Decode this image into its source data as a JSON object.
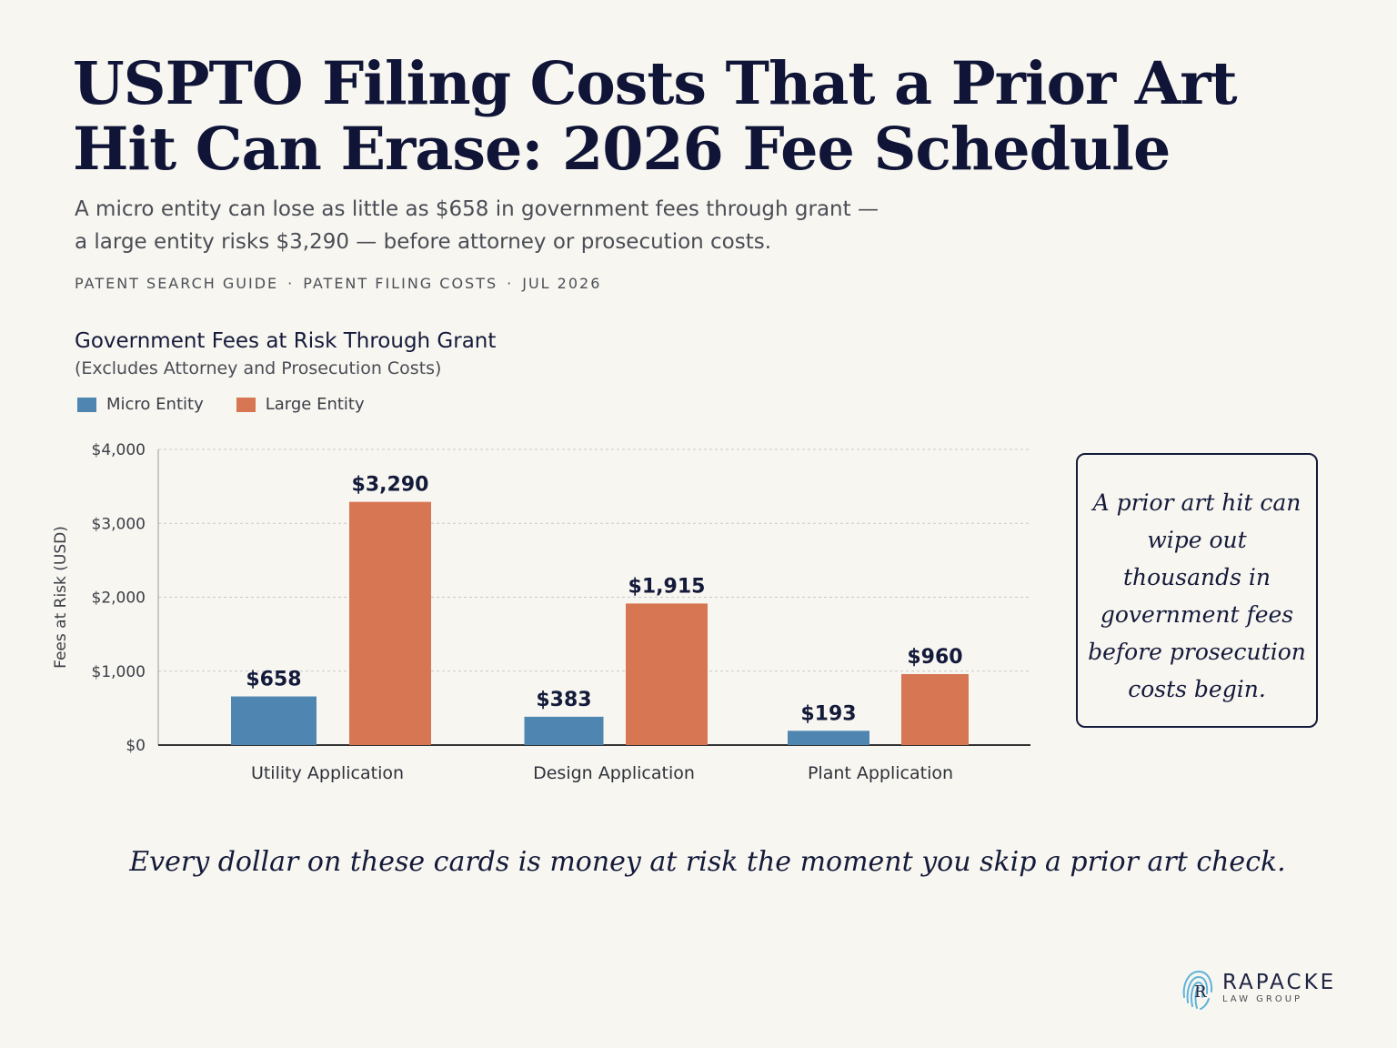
{
  "header": {
    "title": "USPTO Filing Costs That a Prior Art Hit Can Erase: 2026 Fee Schedule",
    "subtitle_line1": "A micro entity can lose as little as $658 in government fees through grant —",
    "subtitle_line2": "a large entity risks $3,290 — before attorney or prosecution costs.",
    "meta": [
      "PATENT SEARCH GUIDE",
      "PATENT FILING COSTS",
      "JUL 2026"
    ],
    "meta_separator": "·"
  },
  "chart_data": {
    "type": "bar",
    "title": "Government Fees at Risk Through Grant",
    "subtitle": "(Excludes Attorney and Prosecution Costs)",
    "ylabel": "Fees at Risk (USD)",
    "xlabel": "",
    "categories": [
      "Utility Application",
      "Design Application",
      "Plant Application"
    ],
    "series": [
      {
        "name": "Micro Entity",
        "values": [
          658,
          383,
          193
        ],
        "labels": [
          "$658",
          "$383",
          "$193"
        ],
        "color": "#4e86b1"
      },
      {
        "name": "Large Entity",
        "values": [
          3290,
          1915,
          960
        ],
        "labels": [
          "$3,290",
          "$1,915",
          "$960"
        ],
        "color": "#d77652"
      }
    ],
    "ylim": [
      0,
      4000
    ],
    "yticks": [
      0,
      1000,
      2000,
      3000,
      4000
    ],
    "ytick_labels": [
      "$0",
      "$1,000",
      "$2,000",
      "$3,000",
      "$4,000"
    ],
    "grid": true,
    "legend_position": "top-left"
  },
  "callout": {
    "text": "A prior art hit can wipe out thousands in government fees before prosecution costs begin."
  },
  "footer": {
    "quote": "Every dollar on these cards is money at risk the moment you skip a prior art check."
  },
  "logo": {
    "name": "RAPACKE",
    "sub": "LAW GROUP"
  }
}
